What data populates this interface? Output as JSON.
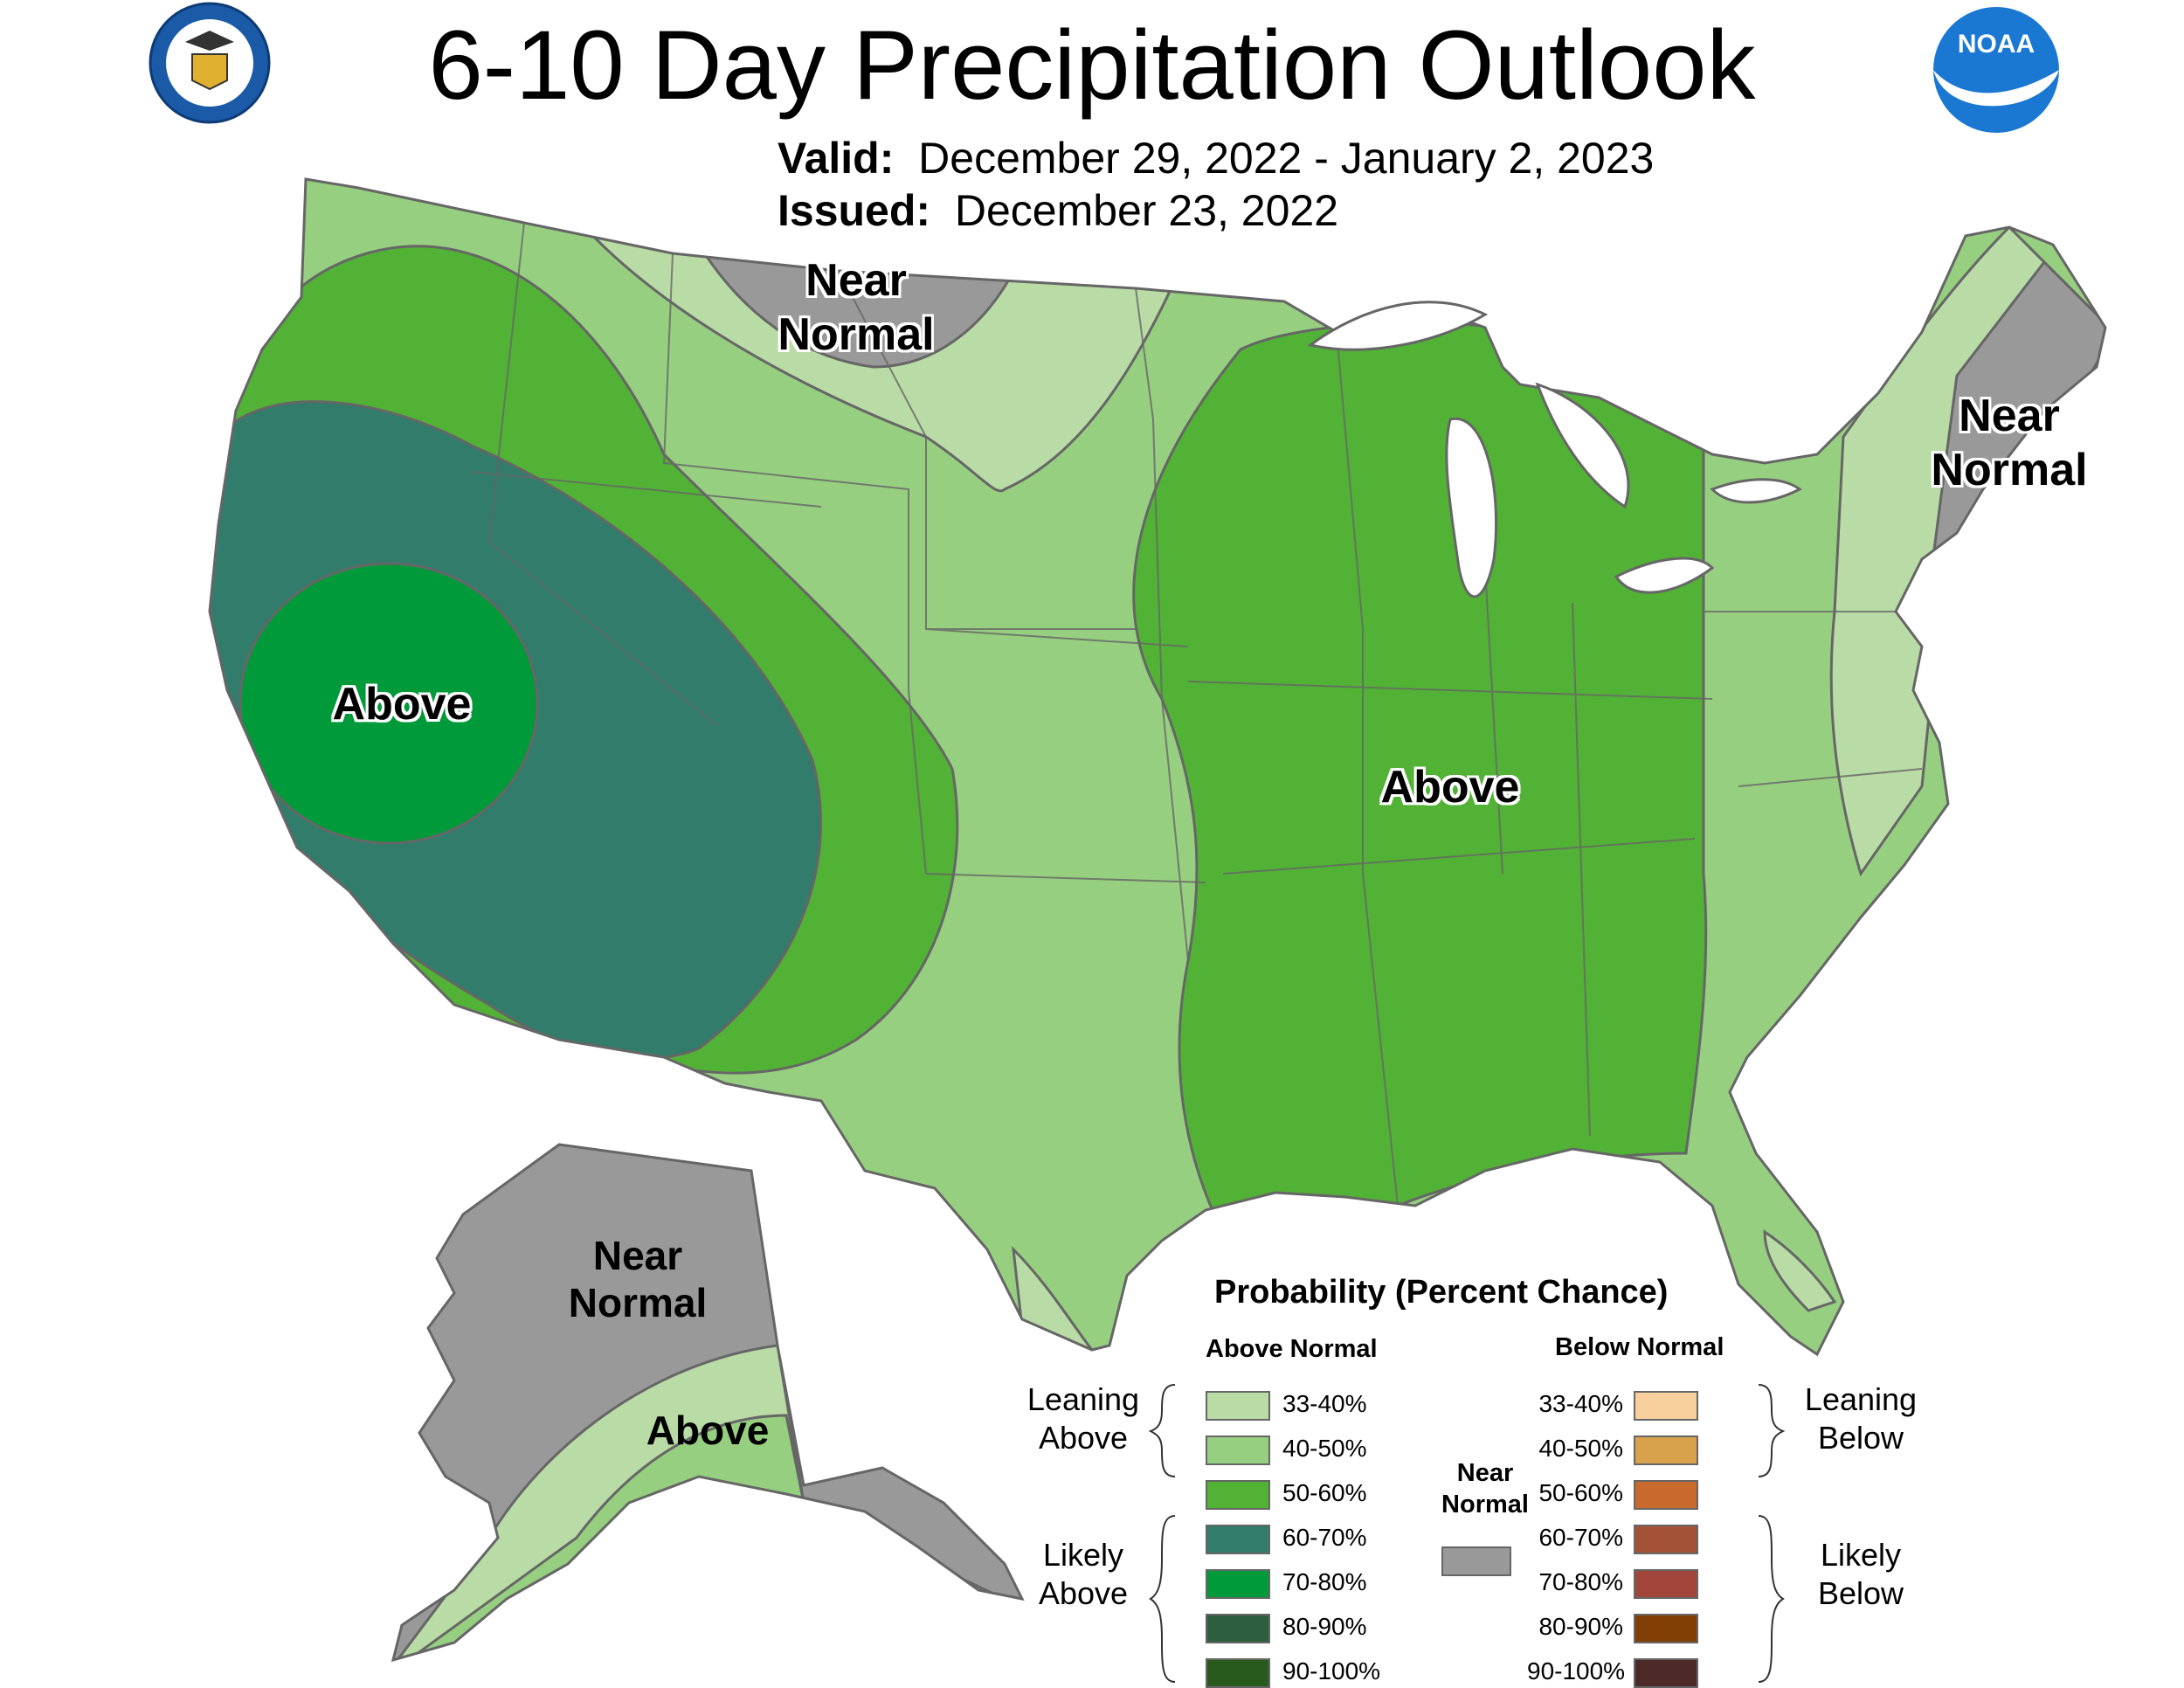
{
  "title": "6-10 Day Precipitation Outlook",
  "valid": {
    "label": "Valid:",
    "value": "December 29, 2022 - January 2, 2023"
  },
  "issued": {
    "label": "Issued:",
    "value": "December 23, 2022"
  },
  "logos": {
    "left": "department-of-commerce-seal",
    "right": "noaa-logo",
    "noaa_text": "NOAA"
  },
  "regions": {
    "north_plains": "Near Normal",
    "northeast": "Near Normal",
    "california": "Above",
    "east": "Above",
    "alaska_north": "Near Normal",
    "alaska_south": "Above"
  },
  "legend": {
    "title": "Probability (Percent Chance)",
    "above_header": "Above Normal",
    "below_header": "Below Normal",
    "near_normal_label": "Near Normal",
    "near_normal_color": "#999999",
    "leaning_above": "Leaning Above",
    "likely_above": "Likely Above",
    "leaning_below": "Leaning Below",
    "likely_below": "Likely Below",
    "above": [
      {
        "range": "33-40%",
        "color": "#b9dba6"
      },
      {
        "range": "40-50%",
        "color": "#97cf80"
      },
      {
        "range": "50-60%",
        "color": "#52b236"
      },
      {
        "range": "60-70%",
        "color": "#317c6b"
      },
      {
        "range": "70-80%",
        "color": "#009a3a"
      },
      {
        "range": "80-90%",
        "color": "#2d5f3f"
      },
      {
        "range": "90-100%",
        "color": "#285a1e"
      }
    ],
    "below": [
      {
        "range": "33-40%",
        "color": "#f7d09e"
      },
      {
        "range": "40-50%",
        "color": "#d8a24c"
      },
      {
        "range": "50-60%",
        "color": "#c86a2e"
      },
      {
        "range": "60-70%",
        "color": "#a35236"
      },
      {
        "range": "70-80%",
        "color": "#a2453a"
      },
      {
        "range": "80-90%",
        "color": "#823f05"
      },
      {
        "range": "90-100%",
        "color": "#4d2a2a"
      }
    ]
  }
}
